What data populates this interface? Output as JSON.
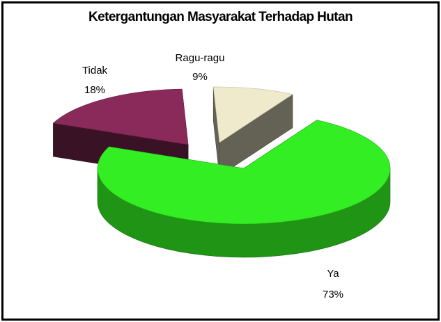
{
  "chart_data": {
    "type": "pie",
    "title": "Ketergantungan Masyarakat Terhadap Hutan",
    "three_d": true,
    "exploded": true,
    "legend": "none",
    "slices": [
      {
        "name": "Ya",
        "value": 73,
        "label": "73%",
        "color": "#33ee22"
      },
      {
        "name": "Tidak",
        "value": 18,
        "label": "18%",
        "color": "#8a2a5a"
      },
      {
        "name": "Ragu-ragu",
        "value": 9,
        "label": "9%",
        "color": "#eeeacb"
      }
    ]
  }
}
